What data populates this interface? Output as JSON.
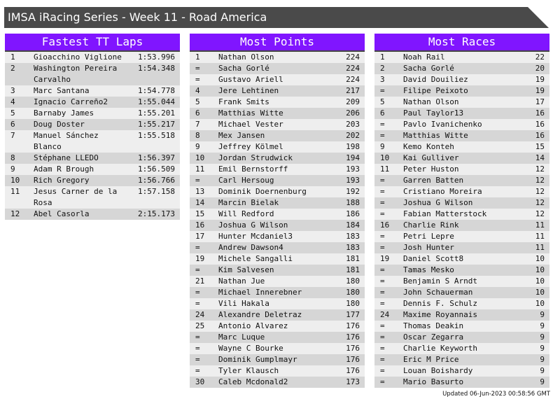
{
  "title": "IMSA iRacing Series - Week 11 - Road America",
  "updated": "Updated 06-Jun-2023 00:58:56 GMT",
  "colors": {
    "header_bg": "#8015ff",
    "title_bg": "#4a4a4a",
    "row_light": "#eeeeee",
    "row_dark": "#d6d6d6"
  },
  "panels": [
    {
      "title": "Fastest TT Laps",
      "rows": [
        [
          "1",
          "Gioacchino Viglione",
          "1:53.996"
        ],
        [
          "2",
          "Washington Pereira Carvalho",
          "1:54.348"
        ],
        [
          "3",
          "Marc Santana",
          "1:54.778"
        ],
        [
          "4",
          "Ignacio Carreño2",
          "1:55.044"
        ],
        [
          "5",
          "Barnaby James",
          "1:55.201"
        ],
        [
          "6",
          "Doug Doster",
          "1:55.217"
        ],
        [
          "7",
          "Manuel Sánchez Blanco",
          "1:55.518"
        ],
        [
          "8",
          "Stéphane LLEDO",
          "1:56.397"
        ],
        [
          "9",
          "Adam R Brough",
          "1:56.509"
        ],
        [
          "10",
          "Rich Gregory",
          "1:56.766"
        ],
        [
          "11",
          "Jesus Carner de la Rosa",
          "1:57.158"
        ],
        [
          "12",
          "Abel Casorla",
          "2:15.173"
        ]
      ]
    },
    {
      "title": "Most Points",
      "rows": [
        [
          "1",
          "Nathan Olson",
          "224"
        ],
        [
          "=",
          "Sacha Gorlé",
          "224"
        ],
        [
          "=",
          "Gustavo Ariell",
          "224"
        ],
        [
          "4",
          "Jere Lehtinen",
          "217"
        ],
        [
          "5",
          "Frank Smits",
          "209"
        ],
        [
          "6",
          "Matthias Witte",
          "206"
        ],
        [
          "7",
          "Michael Vester",
          "203"
        ],
        [
          "8",
          "Mex Jansen",
          "202"
        ],
        [
          "9",
          "Jeffrey Kölmel",
          "198"
        ],
        [
          "10",
          "Jordan Strudwick",
          "194"
        ],
        [
          "11",
          "Emil Bernstorff",
          "193"
        ],
        [
          "=",
          "Carl Hersoug",
          "193"
        ],
        [
          "13",
          "Dominik Doernenburg",
          "192"
        ],
        [
          "14",
          "Marcin Bielak",
          "188"
        ],
        [
          "15",
          "Will Redford",
          "186"
        ],
        [
          "16",
          "Joshua G Wilson",
          "184"
        ],
        [
          "17",
          "Hunter Mcdaniel3",
          "183"
        ],
        [
          "=",
          "Andrew Dawson4",
          "183"
        ],
        [
          "19",
          "Michele Sangalli",
          "181"
        ],
        [
          "=",
          "Kim Salvesen",
          "181"
        ],
        [
          "21",
          "Nathan Jue",
          "180"
        ],
        [
          "=",
          "Michael Innerebner",
          "180"
        ],
        [
          "=",
          "Vili Hakala",
          "180"
        ],
        [
          "24",
          "Alexandre Deletraz",
          "177"
        ],
        [
          "25",
          "Antonio Alvarez",
          "176"
        ],
        [
          "=",
          "Marc Luque",
          "176"
        ],
        [
          "=",
          "Wayne C Bourke",
          "176"
        ],
        [
          "=",
          "Dominik Gumplmayr",
          "176"
        ],
        [
          "=",
          "Tyler Klausch",
          "176"
        ],
        [
          "30",
          "Caleb Mcdonald2",
          "173"
        ]
      ]
    },
    {
      "title": "Most Races",
      "rows": [
        [
          "1",
          "Noah Rail",
          "22"
        ],
        [
          "2",
          "Sacha Gorlé",
          "20"
        ],
        [
          "3",
          "David Douiliez",
          "19"
        ],
        [
          "=",
          "Filipe Peixoto",
          "19"
        ],
        [
          "5",
          "Nathan Olson",
          "17"
        ],
        [
          "6",
          "Paul Taylor13",
          "16"
        ],
        [
          "=",
          "Pavlo Ivanichenko",
          "16"
        ],
        [
          "=",
          "Matthias Witte",
          "16"
        ],
        [
          "9",
          "Kemo Konteh",
          "15"
        ],
        [
          "10",
          "Kai Gulliver",
          "14"
        ],
        [
          "11",
          "Peter Huston",
          "12"
        ],
        [
          "=",
          "Garren Batten",
          "12"
        ],
        [
          "=",
          "Cristiano Moreira",
          "12"
        ],
        [
          "=",
          "Joshua G Wilson",
          "12"
        ],
        [
          "=",
          "Fabian Matterstock",
          "12"
        ],
        [
          "16",
          "Charlie Rink",
          "11"
        ],
        [
          "=",
          "Petri Lepre",
          "11"
        ],
        [
          "=",
          "Josh Hunter",
          "11"
        ],
        [
          "19",
          "Daniel Scott8",
          "10"
        ],
        [
          "=",
          "Tamas Mesko",
          "10"
        ],
        [
          "=",
          "Benjamin S Arndt",
          "10"
        ],
        [
          "=",
          "John Schauerman",
          "10"
        ],
        [
          "=",
          "Dennis F. Schulz",
          "10"
        ],
        [
          "24",
          "Maxime Royannais",
          "9"
        ],
        [
          "=",
          "Thomas Deakin",
          "9"
        ],
        [
          "=",
          "Oscar Zegarra",
          "9"
        ],
        [
          "=",
          "Charlie Keyworth",
          "9"
        ],
        [
          "=",
          "Eric M Price",
          "9"
        ],
        [
          "=",
          "Louan Boishardy",
          "9"
        ],
        [
          "=",
          "Mario Basurto",
          "9"
        ]
      ]
    }
  ]
}
